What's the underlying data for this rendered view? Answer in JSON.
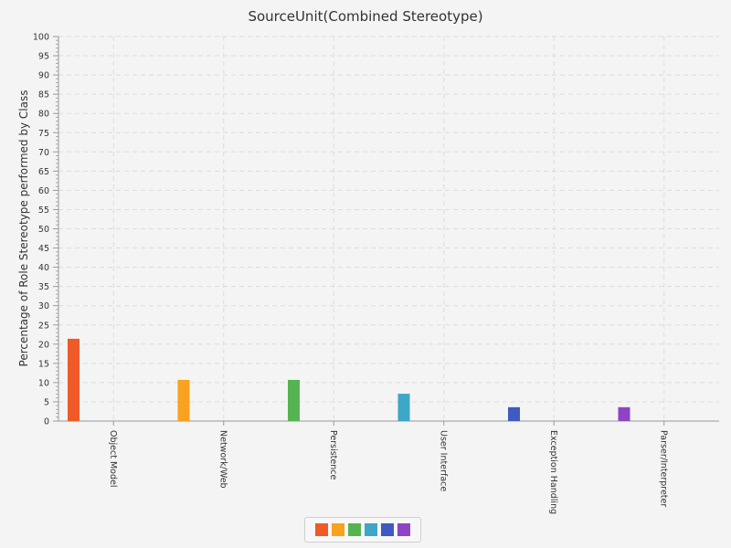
{
  "chart_data": {
    "type": "bar",
    "title": "SourceUnit(Combined Stereotype)",
    "ylabel": "Percentage of Role Stereotype performed by Class",
    "xlabel": "",
    "ylim": [
      0,
      100
    ],
    "ytick_major": 5,
    "grid": true,
    "categories": [
      "Object Model",
      "Network/Web",
      "Persistence",
      "User Interface",
      "Exception Handling",
      "Parser/Interpreter"
    ],
    "values": [
      21.4,
      10.7,
      10.7,
      7.1,
      3.6,
      3.6
    ],
    "colors": [
      "#f05a28",
      "#f8a21e",
      "#55b450",
      "#3ea6c6",
      "#3f5bc1",
      "#8e44c4"
    ],
    "legend_position": "bottom"
  }
}
